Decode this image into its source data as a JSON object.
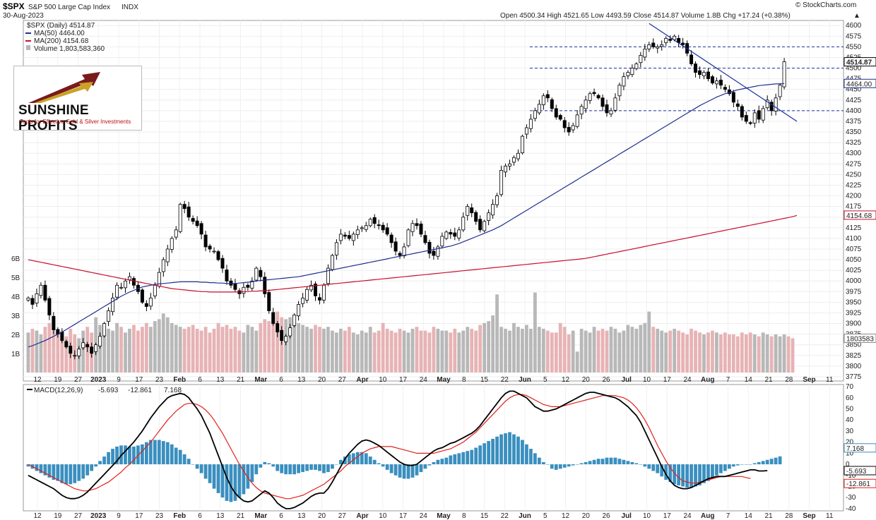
{
  "header": {
    "symbol": "$SPX",
    "name": "S&P 500 Large Cap Index",
    "exchange": "INDX",
    "date": "30-Aug-2023",
    "watermark": "© StockCharts.com",
    "ohlc": "Open 4500.34  High 4521.65  Low 4493.59  Close 4514.87  Volume 1.8B  Chg +17.24 (+0.38%)",
    "up_arrow": "▲"
  },
  "legend": {
    "price": "$SPX (Daily) 4514.87",
    "ma50": "MA(50) 4464.00",
    "ma200": "MA(200) 4154.68",
    "volume": "Volume 1,803,583,360"
  },
  "logo": {
    "name": "SUNSHINE PROFITS",
    "tagline": "Tools for Effective Gold & Silver Investments"
  },
  "macd_legend": {
    "label": "MACD(12,26,9)",
    "v1": "-5.693",
    "v2": "-12.861",
    "v3": "7.168"
  },
  "colors": {
    "up": "#ffffff",
    "down": "#000000",
    "ma50": "#1f2f8f",
    "ma200": "#c8102e",
    "volUp": "#b8b8b8",
    "volDown": "#e7b3b5",
    "hist": "#3a8fbf",
    "macd": "#000000",
    "signal": "#e0201a",
    "hline": "#1c2fa0",
    "trend": "#1c2fa0"
  },
  "chart_data": {
    "type": "candlestick",
    "title": "$SPX S&P 500 Large Cap Index INDX",
    "x_tick_labels": [
      "12",
      "19",
      "27",
      "2023",
      "9",
      "17",
      "23",
      "Feb",
      "6",
      "13",
      "21",
      "Mar",
      "6",
      "13",
      "20",
      "27",
      "Apr",
      "10",
      "17",
      "24",
      "May",
      "8",
      "15",
      "22",
      "Jun",
      "5",
      "12",
      "20",
      "26",
      "Jul",
      "10",
      "17",
      "24",
      "Aug",
      "7",
      "14",
      "21",
      "28",
      "Sep",
      "11"
    ],
    "y_tick_labels": [
      "4600",
      "4575",
      "4550",
      "4525",
      "4500",
      "4475",
      "4450",
      "4425",
      "4400",
      "4375",
      "4350",
      "4325",
      "4300",
      "4275",
      "4250",
      "4225",
      "4200",
      "4175",
      "4150",
      "4125",
      "4100",
      "4075",
      "4050",
      "4025",
      "4000",
      "3975",
      "3950",
      "3925",
      "3900",
      "3875",
      "3850",
      "3825",
      "3800",
      "3775"
    ],
    "ylim": [
      3765,
      4612
    ],
    "volume_tick_labels": [
      "6B",
      "5B",
      "4B",
      "3B",
      "2B",
      "1B"
    ],
    "right_value_labels": {
      "last": "4514.87",
      "ma50": "4464.00",
      "ma200": "4154.68",
      "volume": "1803583",
      "hist": "7.168",
      "macd": "-5.693",
      "signal": "-12.861"
    },
    "horizontal_lines": [
      4550,
      4500,
      4400
    ],
    "closes": [
      3960,
      3945,
      3970,
      3990,
      3955,
      3920,
      3885,
      3875,
      3860,
      3845,
      3830,
      3825,
      3840,
      3855,
      3845,
      3830,
      3850,
      3870,
      3900,
      3930,
      3960,
      3990,
      3985,
      4000,
      4010,
      3990,
      3975,
      3950,
      3940,
      3960,
      3990,
      4020,
      4050,
      4075,
      4100,
      4120,
      4180,
      4170,
      4150,
      4140,
      4130,
      4110,
      4080,
      4075,
      4070,
      4050,
      4030,
      4000,
      3990,
      3980,
      3970,
      3985,
      3985,
      4000,
      4030,
      4010,
      3970,
      3930,
      3900,
      3880,
      3860,
      3870,
      3890,
      3920,
      3945,
      3960,
      3980,
      3990,
      3965,
      3955,
      3990,
      4030,
      4060,
      4090,
      4110,
      4105,
      4100,
      4110,
      4120,
      4125,
      4130,
      4145,
      4135,
      4130,
      4120,
      4110,
      4090,
      4070,
      4060,
      4080,
      4120,
      4135,
      4130,
      4110,
      4090,
      4065,
      4060,
      4080,
      4105,
      4115,
      4110,
      4105,
      4120,
      4150,
      4175,
      4160,
      4140,
      4120,
      4140,
      4160,
      4180,
      4200,
      4260,
      4270,
      4275,
      4290,
      4300,
      4340,
      4360,
      4380,
      4400,
      4415,
      4435,
      4430,
      4405,
      4385,
      4380,
      4360,
      4350,
      4365,
      4390,
      4410,
      4425,
      4440,
      4440,
      4430,
      4410,
      4395,
      4400,
      4430,
      4460,
      4480,
      4490,
      4500,
      4510,
      4530,
      4545,
      4555,
      4550,
      4550,
      4555,
      4570,
      4565,
      4575,
      4560,
      4555,
      4535,
      4510,
      4490,
      4485,
      4490,
      4475,
      4465,
      4470,
      4460,
      4450,
      4440,
      4420,
      4410,
      4385,
      4375,
      4370,
      4395,
      4380,
      4405,
      4425,
      4400,
      4430,
      4460,
      4515
    ],
    "ma50": [
      3845,
      3848,
      3852,
      3856,
      3860,
      3865,
      3870,
      3875,
      3880,
      3886,
      3892,
      3898,
      3904,
      3910,
      3916,
      3922,
      3928,
      3934,
      3940,
      3946,
      3952,
      3958,
      3964,
      3969,
      3974,
      3978,
      3982,
      3986,
      3988,
      3990,
      3992,
      3993,
      3994,
      3995,
      3996,
      3997,
      3998,
      3998,
      3998,
      3998,
      3998,
      3997,
      3997,
      3996,
      3996,
      3995,
      3995,
      3994,
      3994,
      3994,
      3995,
      3996,
      3997,
      3998,
      4000,
      4001,
      4002,
      4003,
      4004,
      4005,
      4006,
      4007,
      4008,
      4009,
      4010,
      4012,
      4014,
      4016,
      4018,
      4020,
      4022,
      4024,
      4026,
      4028,
      4030,
      4032,
      4034,
      4036,
      4038,
      4040,
      4042,
      4044,
      4046,
      4048,
      4050,
      4052,
      4054,
      4056,
      4058,
      4060,
      4062,
      4064,
      4066,
      4068,
      4070,
      4072,
      4074,
      4076,
      4078,
      4080,
      4082,
      4085,
      4088,
      4092,
      4096,
      4100,
      4104,
      4108,
      4112,
      4116,
      4120,
      4125,
      4130,
      4136,
      4142,
      4148,
      4154,
      4160,
      4166,
      4172,
      4178,
      4184,
      4190,
      4196,
      4202,
      4208,
      4214,
      4220,
      4226,
      4232,
      4238,
      4244,
      4250,
      4256,
      4262,
      4268,
      4274,
      4280,
      4286,
      4292,
      4298,
      4304,
      4310,
      4316,
      4322,
      4328,
      4334,
      4340,
      4346,
      4352,
      4358,
      4364,
      4370,
      4376,
      4382,
      4388,
      4394,
      4400,
      4406,
      4412,
      4417,
      4422,
      4427,
      4432,
      4436,
      4440,
      4443,
      4446,
      4449,
      4451,
      4453,
      4455,
      4457,
      4459,
      4460,
      4461,
      4462,
      4463,
      4463,
      4464
    ],
    "ma200": [
      4050,
      4048,
      4046,
      4044,
      4042,
      4040,
      4038,
      4036,
      4034,
      4032,
      4030,
      4028,
      4026,
      4024,
      4022,
      4020,
      4018,
      4016,
      4014,
      4012,
      4010,
      4008,
      4006,
      4004,
      4002,
      4000,
      3998,
      3996,
      3994,
      3992,
      3990,
      3988,
      3986,
      3984,
      3982,
      3981,
      3980,
      3979,
      3978,
      3977,
      3976,
      3975,
      3975,
      3974,
      3974,
      3974,
      3974,
      3974,
      3974,
      3974,
      3974,
      3975,
      3975,
      3976,
      3976,
      3977,
      3977,
      3978,
      3979,
      3980,
      3981,
      3982,
      3983,
      3984,
      3985,
      3986,
      3987,
      3988,
      3989,
      3990,
      3991,
      3992,
      3993,
      3994,
      3995,
      3996,
      3997,
      3998,
      3999,
      4000,
      4001,
      4002,
      4003,
      4004,
      4005,
      4006,
      4007,
      4008,
      4009,
      4010,
      4011,
      4012,
      4013,
      4014,
      4015,
      4016,
      4017,
      4018,
      4019,
      4020,
      4021,
      4022,
      4023,
      4024,
      4025,
      4026,
      4027,
      4028,
      4029,
      4030,
      4031,
      4032,
      4033,
      4034,
      4035,
      4036,
      4037,
      4038,
      4039,
      4040,
      4041,
      4042,
      4043,
      4044,
      4045,
      4046,
      4047,
      4048,
      4049,
      4050,
      4051,
      4052,
      4053,
      4055,
      4057,
      4059,
      4061,
      4063,
      4065,
      4067,
      4069,
      4071,
      4073,
      4075,
      4077,
      4079,
      4081,
      4083,
      4085,
      4087,
      4089,
      4091,
      4093,
      4095,
      4097,
      4099,
      4101,
      4103,
      4105,
      4107,
      4109,
      4111,
      4113,
      4115,
      4117,
      4119,
      4121,
      4123,
      4125,
      4127,
      4129,
      4131,
      4133,
      4135,
      4137,
      4139,
      4141,
      4143,
      4145,
      4147,
      4149,
      4151,
      4154
    ],
    "volume_billions": [
      2.1,
      2.3,
      2.2,
      2.0,
      2.4,
      2.6,
      2.2,
      2.1,
      2.0,
      1.9,
      2.3,
      2.0,
      1.8,
      2.2,
      2.4,
      2.1,
      2.9,
      2.5,
      2.4,
      2.3,
      2.2,
      2.6,
      2.4,
      2.1,
      2.3,
      2.5,
      2.2,
      2.4,
      2.6,
      2.4,
      2.7,
      2.8,
      3.1,
      2.9,
      2.6,
      2.5,
      2.4,
      2.3,
      2.4,
      2.5,
      2.3,
      2.2,
      2.4,
      2.1,
      2.3,
      2.6,
      2.4,
      2.5,
      2.3,
      2.4,
      2.2,
      2.1,
      2.5,
      2.4,
      2.2,
      2.6,
      2.8,
      2.7,
      3.0,
      3.2,
      2.9,
      2.8,
      2.9,
      2.7,
      2.6,
      2.5,
      2.4,
      2.3,
      2.5,
      2.4,
      2.3,
      2.4,
      2.2,
      2.1,
      2.3,
      2.2,
      2.4,
      2.1,
      2.0,
      2.2,
      2.1,
      2.4,
      2.1,
      2.2,
      2.6,
      2.3,
      2.2,
      2.1,
      2.3,
      2.2,
      2.1,
      2.3,
      2.4,
      2.2,
      2.2,
      2.1,
      2.4,
      2.3,
      2.2,
      2.2,
      2.1,
      2.3,
      2.1,
      2.2,
      2.4,
      2.3,
      2.2,
      2.5,
      2.6,
      2.7,
      3.0,
      4.1,
      2.4,
      2.3,
      2.2,
      2.6,
      2.4,
      2.3,
      2.5,
      2.3,
      4.2,
      2.4,
      2.3,
      2.2,
      2.1,
      2.1,
      2.6,
      2.4,
      2.0,
      2.2,
      1.1,
      2.3,
      2.2,
      2.1,
      2.4,
      2.2,
      2.3,
      2.2,
      2.4,
      2.3,
      2.1,
      2.2,
      2.5,
      2.4,
      2.3,
      2.5,
      2.6,
      3.2,
      2.4,
      2.3,
      2.2,
      2.1,
      2.2,
      2.3,
      2.2,
      2.1,
      2.0,
      2.3,
      2.2,
      2.1,
      2.0,
      2.1,
      2.2,
      2.1,
      2.0,
      2.1,
      2.0,
      2.0,
      1.9,
      2.1,
      2.0,
      2.1,
      2.0,
      1.9,
      2.1,
      2.0,
      1.9,
      2.0,
      1.9,
      2.0,
      1.9,
      1.8
    ],
    "macd": {
      "ylim": [
        -42,
        72
      ],
      "tick_labels": [
        "70",
        "60",
        "50",
        "40",
        "30",
        "20",
        "10",
        "0",
        "-10",
        "-20",
        "-30",
        "-40"
      ],
      "macd": [
        -10,
        -12,
        -14,
        -16,
        -18,
        -20,
        -22,
        -25,
        -28,
        -30,
        -31,
        -31,
        -30,
        -28,
        -25,
        -21,
        -17,
        -13,
        -9,
        -5,
        -1,
        3,
        8,
        12,
        16,
        20,
        25,
        30,
        36,
        42,
        47,
        52,
        56,
        60,
        62,
        63,
        64,
        63,
        60,
        55,
        50,
        44,
        36,
        28,
        18,
        8,
        -2,
        -12,
        -20,
        -26,
        -30,
        -33,
        -34,
        -33,
        -30,
        -27,
        -24,
        -26,
        -30,
        -35,
        -38,
        -40,
        -40,
        -39,
        -37,
        -35,
        -32,
        -29,
        -27,
        -26,
        -26,
        -22,
        -16,
        -9,
        -2,
        5,
        10,
        14,
        18,
        21,
        22,
        21,
        19,
        17,
        14,
        11,
        8,
        5,
        2,
        0,
        -1,
        -1,
        0,
        3,
        6,
        9,
        12,
        14,
        15,
        17,
        19,
        20,
        22,
        24,
        26,
        28,
        31,
        35,
        40,
        45,
        50,
        55,
        60,
        64,
        66,
        66,
        64,
        62,
        60,
        56,
        52,
        50,
        48,
        48,
        49,
        50,
        52,
        54,
        56,
        58,
        60,
        62,
        64,
        65,
        65,
        64,
        63,
        62,
        61,
        60,
        58,
        55,
        52,
        48,
        44,
        38,
        30,
        22,
        14,
        6,
        -2,
        -9,
        -15,
        -19,
        -21,
        -22,
        -22,
        -21,
        -19,
        -17,
        -15,
        -13,
        -12,
        -11,
        -11,
        -11,
        -10,
        -9,
        -8,
        -7,
        -6,
        -5,
        -5,
        -6,
        -6,
        -5.693
      ],
      "signal": [
        0,
        -2,
        -4,
        -6,
        -8,
        -10,
        -12,
        -14,
        -16,
        -18,
        -20,
        -22,
        -23,
        -24,
        -24,
        -23,
        -22,
        -20,
        -18,
        -16,
        -13,
        -10,
        -7,
        -3,
        0,
        4,
        8,
        12,
        16,
        20,
        25,
        30,
        35,
        40,
        44,
        48,
        51,
        54,
        55,
        55,
        54,
        52,
        49,
        45,
        40,
        34,
        28,
        21,
        14,
        7,
        0,
        -6,
        -12,
        -17,
        -21,
        -24,
        -26,
        -27,
        -28,
        -29,
        -30,
        -31,
        -31,
        -30,
        -29,
        -28,
        -26,
        -24,
        -22,
        -20,
        -18,
        -15,
        -12,
        -9,
        -6,
        -2,
        1,
        4,
        7,
        10,
        12,
        14,
        15,
        16,
        16,
        16,
        16,
        15,
        14,
        13,
        12,
        11,
        10,
        10,
        10,
        10,
        10,
        11,
        12,
        13,
        14,
        16,
        18,
        20,
        23,
        26,
        29,
        33,
        37,
        41,
        45,
        49,
        53,
        57,
        60,
        62,
        63,
        63,
        62,
        60,
        58,
        56,
        54,
        53,
        52,
        52,
        52,
        53,
        54,
        55,
        56,
        57,
        58,
        59,
        60,
        61,
        62,
        62,
        62,
        62,
        61,
        60,
        58,
        55,
        51,
        46,
        40,
        33,
        25,
        17,
        10,
        3,
        -3,
        -8,
        -12,
        -15,
        -16,
        -17,
        -17,
        -16,
        -15,
        -14,
        -13,
        -12,
        -11,
        -11,
        -11,
        -11,
        -11,
        -11,
        -12,
        -12.861
      ],
      "histogram": [
        -2,
        -4,
        -6,
        -8,
        -10,
        -12,
        -14,
        -15,
        -17,
        -18,
        -18,
        -17,
        -15,
        -13,
        -10,
        -6,
        -2,
        3,
        7,
        11,
        14,
        16,
        17,
        17,
        16,
        16,
        17,
        18,
        20,
        22,
        22,
        22,
        21,
        20,
        18,
        15,
        13,
        9,
        5,
        0,
        -4,
        -8,
        -13,
        -17,
        -22,
        -26,
        -30,
        -33,
        -34,
        -33,
        -30,
        -27,
        -22,
        -16,
        -9,
        -3,
        2,
        1,
        -2,
        -6,
        -8,
        -9,
        -9,
        -9,
        -8,
        -7,
        -6,
        -5,
        -5,
        -6,
        -8,
        -7,
        -4,
        0,
        4,
        7,
        9,
        10,
        11,
        11,
        10,
        7,
        4,
        1,
        -2,
        -5,
        -8,
        -10,
        -12,
        -13,
        -13,
        -12,
        -10,
        -7,
        -4,
        -1,
        2,
        4,
        5,
        6,
        8,
        9,
        10,
        11,
        12,
        13,
        15,
        17,
        19,
        21,
        23,
        25,
        27,
        28,
        29,
        27,
        25,
        22,
        18,
        14,
        10,
        6,
        2,
        0,
        -4,
        -5,
        -4,
        -3,
        -2,
        -1,
        0,
        1,
        2,
        3,
        4,
        5,
        5,
        6,
        6,
        6,
        5,
        4,
        3,
        2,
        1,
        0,
        -2,
        -4,
        -6,
        -8,
        -11,
        -14,
        -16,
        -18,
        -19,
        -20,
        -21,
        -21,
        -20,
        -19,
        -17,
        -15,
        -13,
        -10,
        -8,
        -6,
        -4,
        -2,
        -1,
        0,
        0,
        0,
        1,
        2,
        3,
        4,
        5,
        6,
        7.168
      ]
    }
  }
}
